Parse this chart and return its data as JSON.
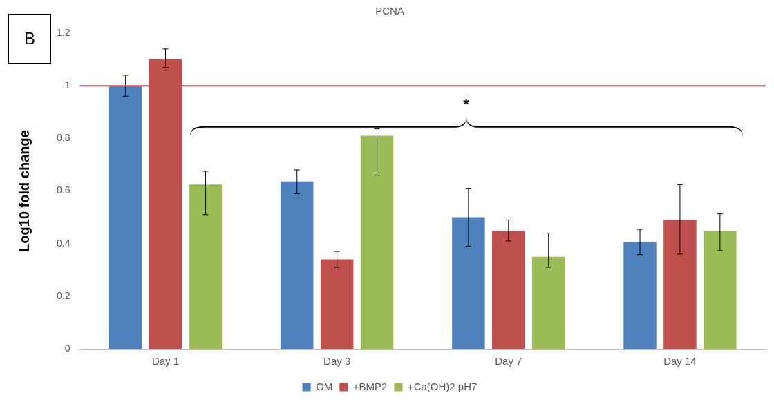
{
  "chart_data": {
    "type": "bar",
    "title": "PCNA",
    "ylabel": "Log10 fold change",
    "categories": [
      "Day 1",
      "Day 3",
      "Day 7",
      "Day 14"
    ],
    "series": [
      {
        "name": "OM",
        "color": "#4f81bd",
        "values": [
          1.0,
          0.636,
          0.5,
          0.406
        ],
        "errors": [
          [
            0.96,
            1.04
          ],
          [
            0.59,
            0.68
          ],
          [
            0.39,
            0.61
          ],
          [
            0.358,
            0.454
          ]
        ]
      },
      {
        "name": "+BMP2",
        "color": "#c0504d",
        "values": [
          1.1,
          0.34,
          0.448,
          0.49
        ],
        "errors": [
          [
            1.07,
            1.14
          ],
          [
            0.31,
            0.37
          ],
          [
            0.41,
            0.49
          ],
          [
            0.36,
            0.624
          ]
        ]
      },
      {
        "name": "+Ca(OH)2 pH7",
        "color": "#9bbb59",
        "values": [
          0.624,
          0.81,
          0.35,
          0.448
        ],
        "errors": [
          [
            0.51,
            0.675
          ],
          [
            0.66,
            0.836
          ],
          [
            0.31,
            0.44
          ],
          [
            0.373,
            0.513
          ]
        ]
      }
    ],
    "ylim": [
      0,
      1.2
    ],
    "yticks": [
      0,
      0.2,
      0.4,
      0.6,
      0.8,
      1,
      1.2
    ],
    "grid": false,
    "legend": "bottom",
    "ref_lines": [
      {
        "axis": "y",
        "value": 1,
        "color": "#c0504d"
      }
    ],
    "annotations": [
      "B",
      "*"
    ]
  }
}
